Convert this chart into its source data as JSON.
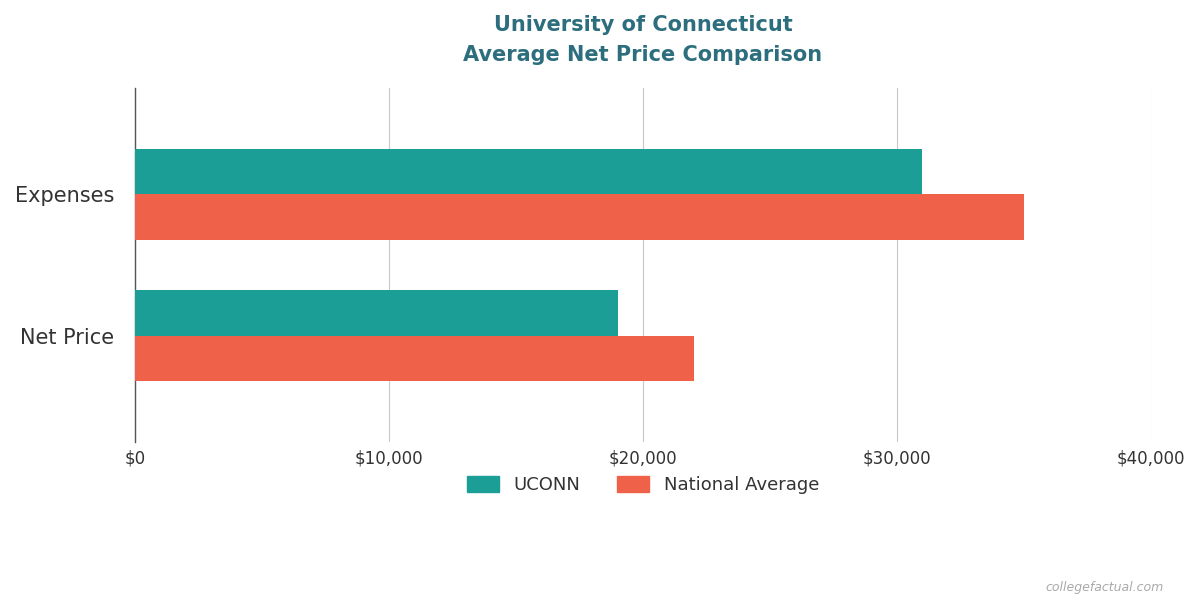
{
  "title_line1": "University of Connecticut",
  "title_line2": "Average Net Price Comparison",
  "categories": [
    "Net Price",
    "Expenses"
  ],
  "uconn_values": [
    19000,
    31000
  ],
  "national_values": [
    22000,
    35000
  ],
  "uconn_color": "#1a9e96",
  "national_color": "#f0614a",
  "xlim": [
    0,
    40000
  ],
  "xticks": [
    0,
    10000,
    20000,
    30000,
    40000
  ],
  "xtick_labels": [
    "$0",
    "$10,000",
    "$20,000",
    "$30,000",
    "$40,000"
  ],
  "legend_labels": [
    "UCONN",
    "National Average"
  ],
  "background_color": "#ffffff",
  "grid_color": "#c8c8c8",
  "title_color": "#2d6e7e",
  "label_color": "#333333",
  "watermark": "collegefactual.com",
  "bar_height": 0.32,
  "bar_gap": 0.0
}
